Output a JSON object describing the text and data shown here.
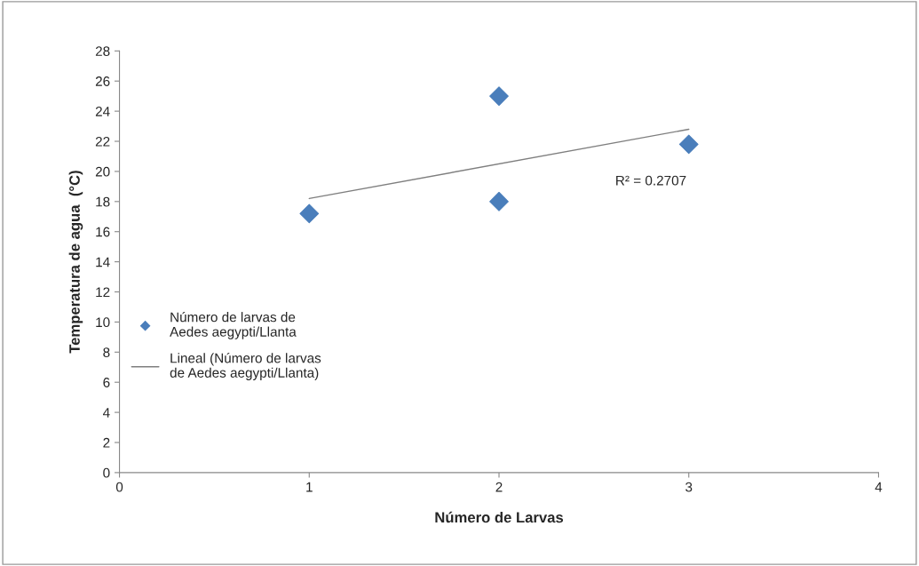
{
  "chart_data": {
    "type": "scatter",
    "xlabel": "Número de Larvas",
    "ylabel": "Temperatura de agua  (°C)",
    "xlim": [
      0,
      4
    ],
    "xticks": [
      0,
      1,
      2,
      3,
      4
    ],
    "ylim": [
      0,
      28
    ],
    "yticks": [
      0,
      2,
      4,
      6,
      8,
      10,
      12,
      14,
      16,
      18,
      20,
      22,
      24,
      26,
      28
    ],
    "x": [
      1,
      2,
      2,
      3
    ],
    "marker": "diamond",
    "grid": false,
    "legend": "left",
    "series": [
      {
        "name": "Número de larvas de\nAedes aegypti/Llanta",
        "color": "#4a7ebb",
        "values": [
          17.2,
          25,
          18,
          21.8
        ]
      },
      {
        "type": "line",
        "name": "Lineal (Número de larvas\nde Aedes aegypti/Llanta)",
        "color": "#7f7f7f",
        "x": [
          1,
          3
        ],
        "values": [
          18.2,
          22.8
        ],
        "marker": "none"
      }
    ],
    "annotations": [
      "R² = 0.2707"
    ]
  }
}
